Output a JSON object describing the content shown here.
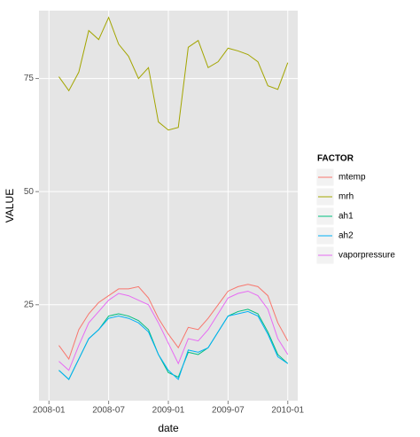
{
  "chart_data": {
    "type": "line",
    "x": [
      "2008-02",
      "2008-03",
      "2008-04",
      "2008-05",
      "2008-06",
      "2008-07",
      "2008-08",
      "2008-09",
      "2008-10",
      "2008-11",
      "2008-12",
      "2009-01",
      "2009-02",
      "2009-03",
      "2009-04",
      "2009-05",
      "2009-06",
      "2009-07",
      "2009-08",
      "2009-09",
      "2009-10",
      "2009-11",
      "2009-12",
      "2010-01"
    ],
    "series": [
      {
        "name": "mtemp",
        "color": "#F8766D",
        "values": [
          16,
          13,
          19.5,
          23,
          25.5,
          27,
          28.5,
          28.5,
          29,
          26.5,
          22,
          18.5,
          15.5,
          20,
          19.5,
          22,
          25,
          28,
          29,
          29.5,
          29,
          27,
          21,
          17
        ]
      },
      {
        "name": "mrh",
        "color": "#A3A500",
        "values": [
          75.4,
          72.3,
          76.4,
          85.6,
          83.6,
          88.5,
          82.6,
          79.9,
          75,
          77.4,
          65.4,
          63.6,
          64.2,
          81.9,
          83.4,
          77.4,
          78.7,
          81.7,
          81.1,
          80.3,
          78.7,
          73.4,
          72.6,
          78.5
        ]
      },
      {
        "name": "ah1",
        "color": "#00BF7D",
        "values": [
          10.5,
          8.5,
          13,
          17.5,
          19.5,
          22.5,
          23,
          22.5,
          21.5,
          19.5,
          14,
          10,
          9,
          14.5,
          14,
          15.5,
          19,
          22.5,
          23.5,
          24,
          23,
          19,
          14,
          12
        ]
      },
      {
        "name": "ah2",
        "color": "#00B0F6",
        "values": [
          10.5,
          8.5,
          13,
          17.5,
          19.5,
          22,
          22.5,
          22,
          21,
          19,
          14,
          10.5,
          8.5,
          15,
          14.5,
          15.5,
          19,
          22.5,
          23,
          23.5,
          22.5,
          18.5,
          13.5,
          12
        ]
      },
      {
        "name": "vaporpressure",
        "color": "#E76BF3",
        "values": [
          12.5,
          10.5,
          16,
          21,
          23.5,
          26,
          27.5,
          27,
          26,
          25,
          21,
          16.5,
          12,
          17.5,
          17,
          19.5,
          23,
          26.5,
          27.5,
          28,
          27,
          24,
          17.5,
          14
        ]
      }
    ],
    "xlabel": "date",
    "ylabel": "VALUE",
    "legend_title": "FACTOR",
    "xlim": [
      "2007-12",
      "2010-02"
    ],
    "xticks": [
      "2008-01",
      "2008-07",
      "2009-01",
      "2009-07",
      "2010-01"
    ],
    "ylim": [
      3.8,
      90
    ],
    "yticks": [
      25,
      50,
      75
    ],
    "grid": true,
    "legend": "right"
  }
}
